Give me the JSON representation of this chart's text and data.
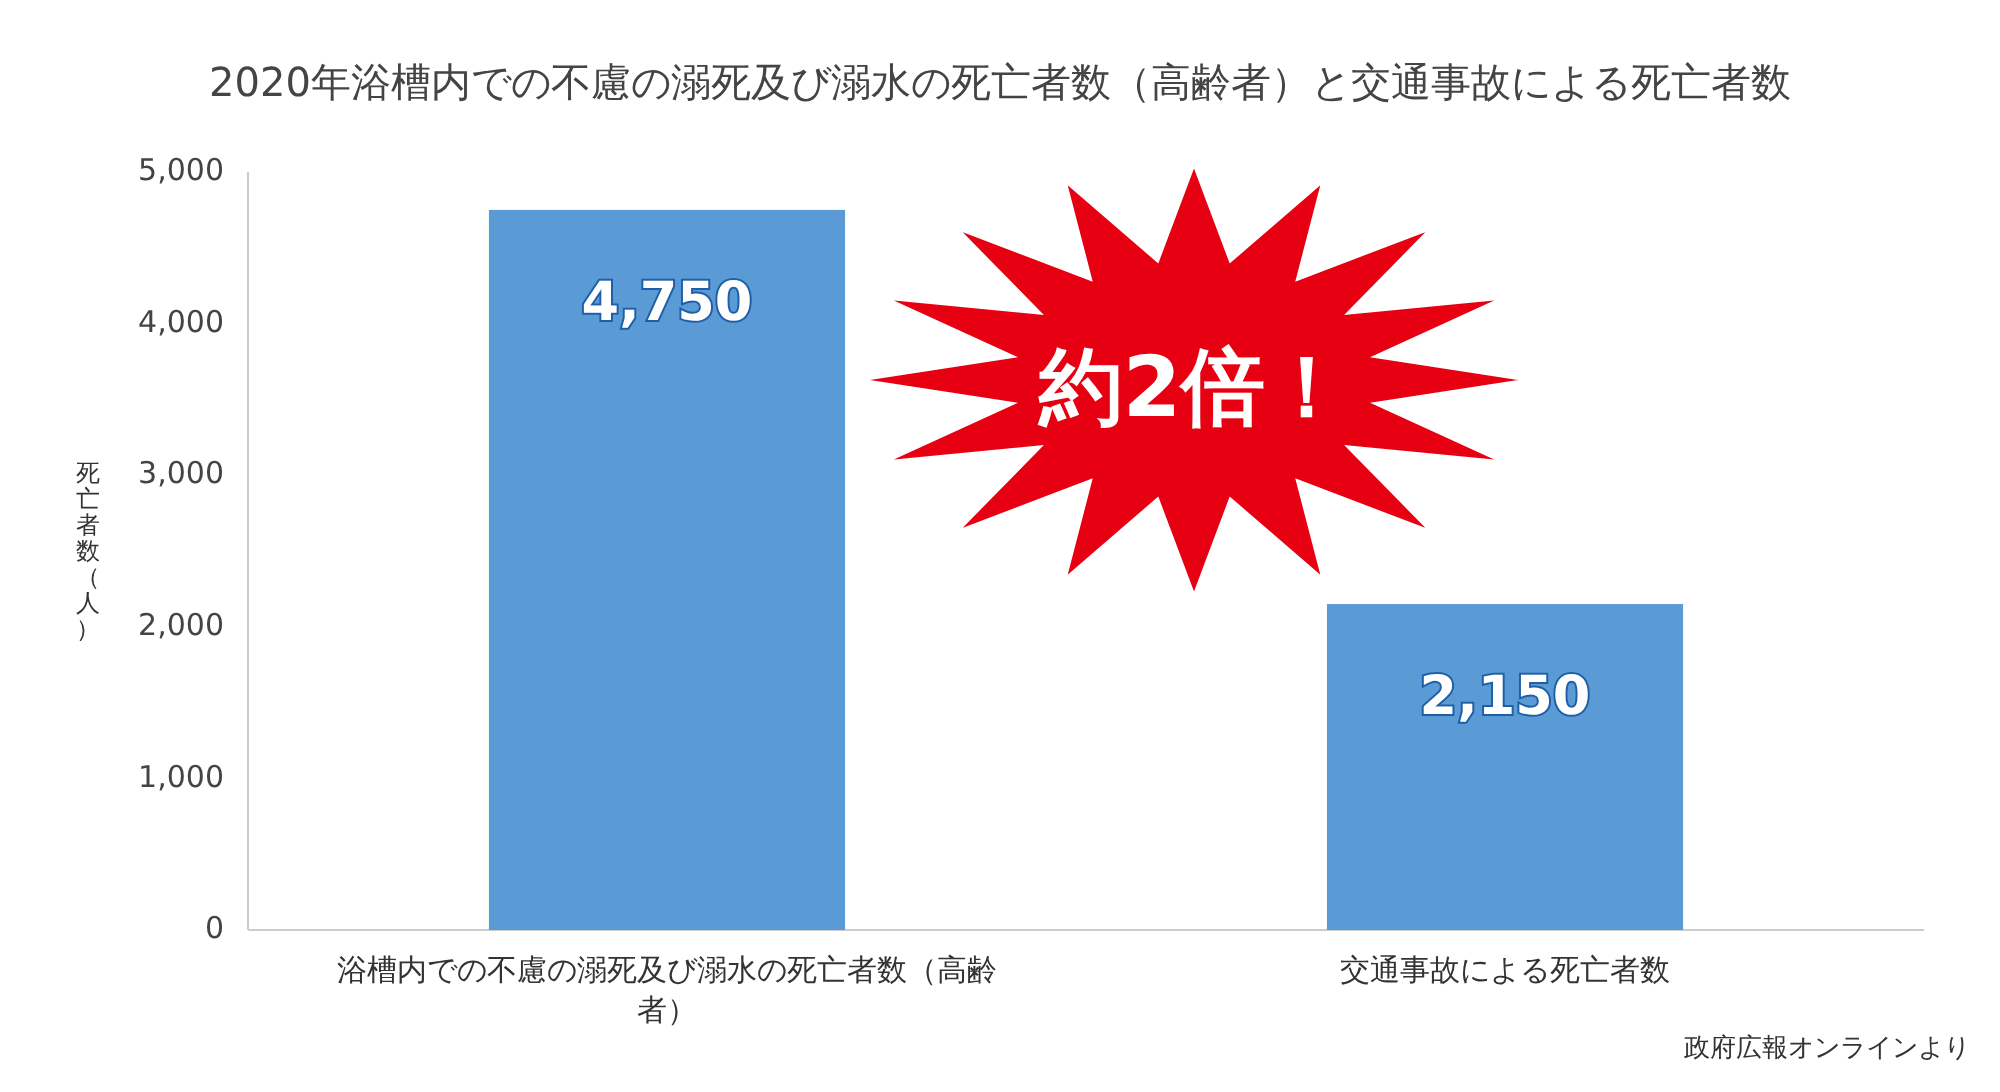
{
  "chart_data": {
    "type": "bar",
    "title": "2020年浴槽内での不慮の溺死及び溺水の死亡者数（高齢者）と交通事故による死亡者数",
    "ylabel": "死亡者数（人）",
    "categories": [
      "浴槽内での不慮の溺死及び溺水の死亡者数（高齢者）",
      "交通事故による死亡者数"
    ],
    "values": [
      4750,
      2150
    ],
    "value_labels": [
      "4,750",
      "2,150"
    ],
    "color": "#5b9bd5",
    "ylim": [
      0,
      5000
    ],
    "yticks": [
      {
        "value": 0,
        "label": "0"
      },
      {
        "value": 1000,
        "label": "1,000"
      },
      {
        "value": 2000,
        "label": "2,000"
      },
      {
        "value": 3000,
        "label": "3,000"
      },
      {
        "value": 4000,
        "label": "4,000"
      },
      {
        "value": 5000,
        "label": "5,000"
      }
    ],
    "grid": false,
    "annotations": [
      "約2倍！",
      "政府広報オンラインより"
    ]
  }
}
